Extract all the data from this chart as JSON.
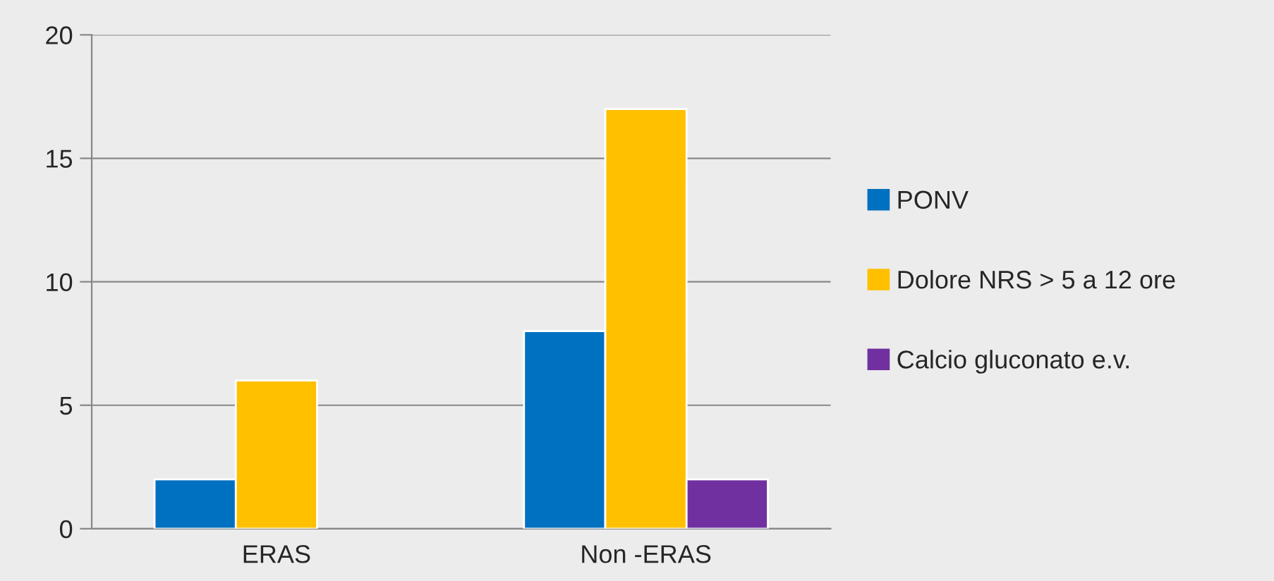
{
  "chart_data": {
    "type": "bar",
    "categories": [
      "ERAS",
      "Non -ERAS"
    ],
    "series": [
      {
        "name": "PONV",
        "color": "#0070c0",
        "values": [
          2,
          8
        ]
      },
      {
        "name": "Dolore NRS > 5 a 12 ore",
        "color": "#ffc000",
        "values": [
          6,
          17
        ]
      },
      {
        "name": "Calcio gluconato e.v.",
        "color": "#7030a0",
        "values": [
          null,
          2
        ]
      }
    ],
    "ylim": [
      0,
      20
    ],
    "yticks": [
      0,
      5,
      10,
      15,
      20
    ],
    "grid": "y",
    "legend": "right"
  }
}
